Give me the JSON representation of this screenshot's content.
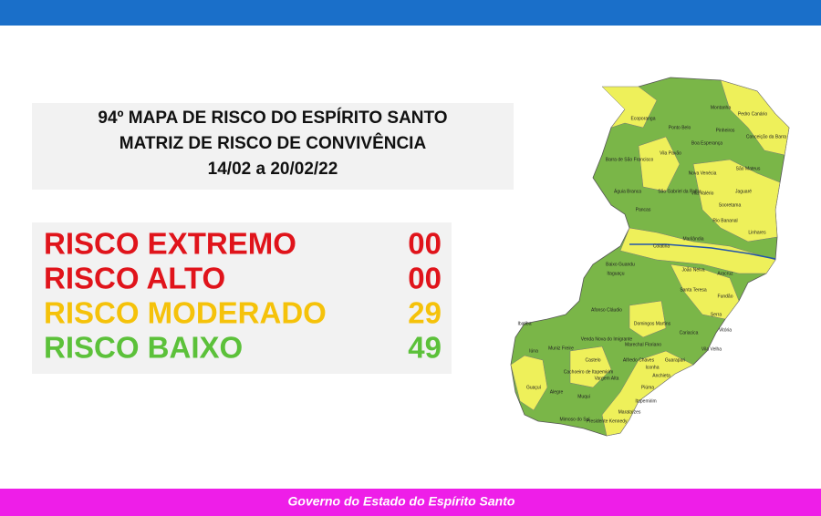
{
  "header": {
    "title_lines": [
      "94º MAPA DE RISCO DO ESPÍRITO SANTO",
      "MATRIZ DE RISCO DE CONVIVÊNCIA",
      "14/02 a 20/02/22"
    ]
  },
  "risks": [
    {
      "label": "RISCO EXTREMO",
      "count": "00",
      "color": "#e0141b"
    },
    {
      "label": "RISCO ALTO",
      "count": "00",
      "color": "#e0141b"
    },
    {
      "label": "RISCO MODERADO",
      "count": "29",
      "color": "#f5c20a"
    },
    {
      "label": "RISCO BAIXO",
      "count": "49",
      "color": "#5cc13a"
    }
  ],
  "map": {
    "labels": [
      "Montanha",
      "Pedro Canário",
      "Ecoporanga",
      "Ponto Belo",
      "Pinheiros",
      "Conceição da Barra",
      "Barra de São Francisco",
      "Vila Pavão",
      "Boa Esperança",
      "São Mateus",
      "Nova Venécia",
      "Águia Branca",
      "São Gabriel da Palha",
      "Vila Valério",
      "Jaguaré",
      "Pancas",
      "Sooretama",
      "Linhares",
      "Colatina",
      "Marilândia",
      "Rio Bananal",
      "Baixo Guandu",
      "Itaguaçu",
      "João Neiva",
      "Aracruz",
      "Santa Teresa",
      "Fundão",
      "Serra",
      "Afonso Cláudio",
      "Domingos Martins",
      "Cariacica",
      "Vitória",
      "Vila Velha",
      "Guarapari",
      "Anchieta",
      "Iconha",
      "Piúma",
      "Itapemirim",
      "Marataízes",
      "Presidente Kennedy",
      "Mimoso do Sul",
      "Muqui",
      "Alegre",
      "Guaçuí",
      "Iúna",
      "Ibatiba",
      "Cachoeiro de Itapemirim",
      "Castelo",
      "Muniz Freire",
      "Venda Nova do Imigrante",
      "Marechal Floriano",
      "Alfredo Chaves",
      "Vargem Alta"
    ]
  },
  "footer": {
    "text": "Governo do Estado do Espírito Santo"
  }
}
